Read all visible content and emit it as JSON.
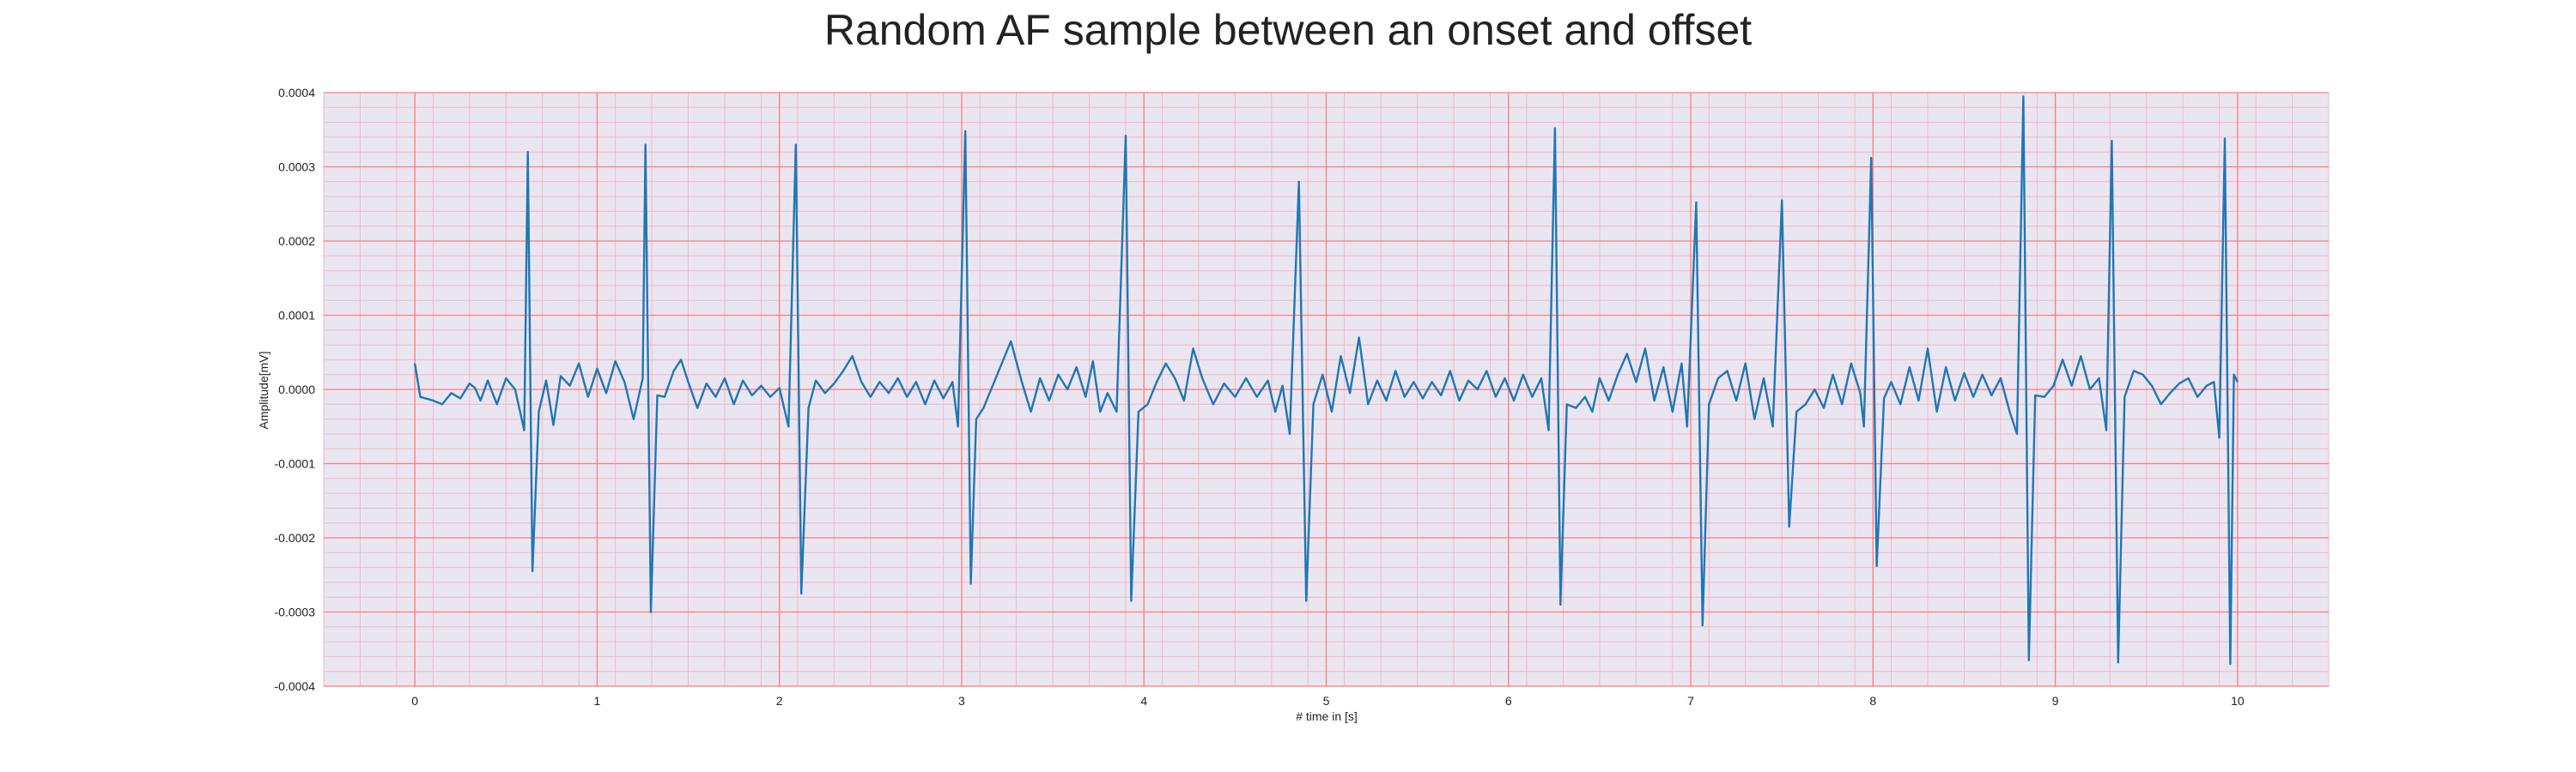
{
  "chart_data": {
    "type": "line",
    "title": "Random AF sample between an onset and offset",
    "xlabel": "# time in [s]",
    "ylabel": "Amplitude[mV]",
    "xlim": [
      -0.5,
      10.5
    ],
    "ylim": [
      -0.0004,
      0.0004
    ],
    "xticks": [
      0,
      1,
      2,
      3,
      4,
      5,
      6,
      7,
      8,
      9,
      10
    ],
    "xtick_labels": [
      "0",
      "1",
      "2",
      "3",
      "4",
      "5",
      "6",
      "7",
      "8",
      "9",
      "10"
    ],
    "yticks": [
      0.0004,
      0.0003,
      0.0002,
      0.0001,
      0.0,
      -0.0001,
      -0.0002,
      -0.0003,
      -0.0004
    ],
    "ytick_labels": [
      "0.0004",
      "0.0003",
      "0.0002",
      "0.0001",
      "0.0000",
      "-0.0001",
      "-0.0002",
      "-0.0003",
      "-0.0004"
    ],
    "grid": {
      "major": true,
      "minor": true,
      "major_color": "#ff7b7b",
      "minor_color": "#f2b8c8"
    },
    "background_color": "#eae6f1",
    "series": [
      {
        "color": "#1f77b4",
        "points": [
          [
            0.0,
            3.5e-05
          ],
          [
            0.03,
            -1e-05
          ],
          [
            0.1,
            -1.5e-05
          ],
          [
            0.15,
            -2e-05
          ],
          [
            0.2,
            -5e-06
          ],
          [
            0.25,
            -1.2e-05
          ],
          [
            0.3,
            8e-06
          ],
          [
            0.33,
            2e-06
          ],
          [
            0.36,
            -1.5e-05
          ],
          [
            0.4,
            1.2e-05
          ],
          [
            0.45,
            -2e-05
          ],
          [
            0.5,
            1.5e-05
          ],
          [
            0.55,
            0.0
          ],
          [
            0.6,
            -5.5e-05
          ],
          [
            0.62,
            0.00032
          ],
          [
            0.645,
            -0.000245
          ],
          [
            0.68,
            -3e-05
          ],
          [
            0.72,
            1.2e-05
          ],
          [
            0.76,
            -4.8e-05
          ],
          [
            0.8,
            1.8e-05
          ],
          [
            0.85,
            5e-06
          ],
          [
            0.9,
            3.5e-05
          ],
          [
            0.95,
            -1e-05
          ],
          [
            1.0,
            2.8e-05
          ],
          [
            1.05,
            -5e-06
          ],
          [
            1.1,
            3.8e-05
          ],
          [
            1.15,
            1e-05
          ],
          [
            1.2,
            -4e-05
          ],
          [
            1.25,
            1.5e-05
          ],
          [
            1.265,
            0.00033
          ],
          [
            1.295,
            -0.0003
          ],
          [
            1.33,
            -8e-06
          ],
          [
            1.37,
            -1e-05
          ],
          [
            1.42,
            2.5e-05
          ],
          [
            1.46,
            4e-05
          ],
          [
            1.5,
            1e-05
          ],
          [
            1.55,
            -2.5e-05
          ],
          [
            1.6,
            8e-06
          ],
          [
            1.65,
            -1e-05
          ],
          [
            1.7,
            1.5e-05
          ],
          [
            1.75,
            -2e-05
          ],
          [
            1.8,
            1.2e-05
          ],
          [
            1.85,
            -8e-06
          ],
          [
            1.9,
            5e-06
          ],
          [
            1.95,
            -1e-05
          ],
          [
            2.0,
            2e-06
          ],
          [
            2.05,
            -5e-05
          ],
          [
            2.09,
            0.00033
          ],
          [
            2.12,
            -0.000275
          ],
          [
            2.16,
            -2.5e-05
          ],
          [
            2.2,
            1.2e-05
          ],
          [
            2.25,
            -5e-06
          ],
          [
            2.3,
            8e-06
          ],
          [
            2.35,
            2.5e-05
          ],
          [
            2.4,
            4.5e-05
          ],
          [
            2.45,
            1e-05
          ],
          [
            2.5,
            -1e-05
          ],
          [
            2.55,
            1e-05
          ],
          [
            2.6,
            -5e-06
          ],
          [
            2.65,
            1.5e-05
          ],
          [
            2.7,
            -1e-05
          ],
          [
            2.75,
            1e-05
          ],
          [
            2.8,
            -2e-05
          ],
          [
            2.85,
            1.2e-05
          ],
          [
            2.9,
            -1.2e-05
          ],
          [
            2.95,
            1e-05
          ],
          [
            2.98,
            -5e-05
          ],
          [
            3.02,
            0.000348
          ],
          [
            3.05,
            -0.000262
          ],
          [
            3.08,
            -4e-05
          ],
          [
            3.12,
            -2.5e-05
          ],
          [
            3.17,
            5e-06
          ],
          [
            3.22,
            3.5e-05
          ],
          [
            3.27,
            6.5e-05
          ],
          [
            3.33,
            1e-05
          ],
          [
            3.38,
            -3e-05
          ],
          [
            3.43,
            1.5e-05
          ],
          [
            3.48,
            -1.5e-05
          ],
          [
            3.53,
            2e-05
          ],
          [
            3.58,
            0.0
          ],
          [
            3.63,
            3e-05
          ],
          [
            3.68,
            -1e-05
          ],
          [
            3.72,
            3.8e-05
          ],
          [
            3.76,
            -3e-05
          ],
          [
            3.8,
            -5e-06
          ],
          [
            3.85,
            -3e-05
          ],
          [
            3.9,
            0.000342
          ],
          [
            3.93,
            -0.000285
          ],
          [
            3.97,
            -3e-05
          ],
          [
            4.02,
            -2e-05
          ],
          [
            4.07,
            1e-05
          ],
          [
            4.12,
            3.5e-05
          ],
          [
            4.17,
            1.5e-05
          ],
          [
            4.22,
            -1.5e-05
          ],
          [
            4.27,
            5.5e-05
          ],
          [
            4.32,
            1.5e-05
          ],
          [
            4.38,
            -2e-05
          ],
          [
            4.44,
            8e-06
          ],
          [
            4.5,
            -1e-05
          ],
          [
            4.56,
            1.5e-05
          ],
          [
            4.62,
            -1e-05
          ],
          [
            4.68,
            1.2e-05
          ],
          [
            4.72,
            -3e-05
          ],
          [
            4.76,
            5e-06
          ],
          [
            4.8,
            -6e-05
          ],
          [
            4.85,
            0.00028
          ],
          [
            4.89,
            -0.000285
          ],
          [
            4.93,
            -2e-05
          ],
          [
            4.98,
            2e-05
          ],
          [
            5.03,
            -3e-05
          ],
          [
            5.08,
            4.5e-05
          ],
          [
            5.13,
            -5e-06
          ],
          [
            5.18,
            7e-05
          ],
          [
            5.23,
            -2e-05
          ],
          [
            5.28,
            1.2e-05
          ],
          [
            5.33,
            -1.5e-05
          ],
          [
            5.38,
            2.5e-05
          ],
          [
            5.43,
            -1e-05
          ],
          [
            5.48,
            1e-05
          ],
          [
            5.53,
            -1.2e-05
          ],
          [
            5.58,
            1e-05
          ],
          [
            5.63,
            -8e-06
          ],
          [
            5.68,
            2.5e-05
          ],
          [
            5.73,
            -1.5e-05
          ],
          [
            5.78,
            1.2e-05
          ],
          [
            5.83,
            0.0
          ],
          [
            5.88,
            2.5e-05
          ],
          [
            5.93,
            -1e-05
          ],
          [
            5.98,
            1.5e-05
          ],
          [
            6.03,
            -1.5e-05
          ],
          [
            6.08,
            2e-05
          ],
          [
            6.13,
            -1e-05
          ],
          [
            6.18,
            1.5e-05
          ],
          [
            6.22,
            -5.5e-05
          ],
          [
            6.255,
            0.000352
          ],
          [
            6.285,
            -0.00029
          ],
          [
            6.32,
            -2e-05
          ],
          [
            6.37,
            -2.5e-05
          ],
          [
            6.42,
            -1e-05
          ],
          [
            6.46,
            -3e-05
          ],
          [
            6.5,
            1.5e-05
          ],
          [
            6.55,
            -1.5e-05
          ],
          [
            6.6,
            2e-05
          ],
          [
            6.65,
            4.8e-05
          ],
          [
            6.7,
            1e-05
          ],
          [
            6.75,
            5.5e-05
          ],
          [
            6.8,
            -1.5e-05
          ],
          [
            6.85,
            3e-05
          ],
          [
            6.9,
            -3e-05
          ],
          [
            6.95,
            3.5e-05
          ],
          [
            6.98,
            -5e-05
          ],
          [
            7.03,
            0.000252
          ],
          [
            7.065,
            -0.000318
          ],
          [
            7.1,
            -2e-05
          ],
          [
            7.15,
            1.5e-05
          ],
          [
            7.2,
            2.5e-05
          ],
          [
            7.25,
            -1.5e-05
          ],
          [
            7.3,
            3.5e-05
          ],
          [
            7.35,
            -4e-05
          ],
          [
            7.4,
            1.5e-05
          ],
          [
            7.45,
            -5e-05
          ],
          [
            7.5,
            0.000255
          ],
          [
            7.54,
            -0.000185
          ],
          [
            7.58,
            -3e-05
          ],
          [
            7.63,
            -2e-05
          ],
          [
            7.68,
            0.0
          ],
          [
            7.73,
            -2.5e-05
          ],
          [
            7.78,
            2e-05
          ],
          [
            7.83,
            -2e-05
          ],
          [
            7.88,
            3.5e-05
          ],
          [
            7.93,
            -5e-06
          ],
          [
            7.95,
            -5e-05
          ],
          [
            7.99,
            0.000312
          ],
          [
            8.02,
            -0.000238
          ],
          [
            8.06,
            -1.2e-05
          ],
          [
            8.1,
            1e-05
          ],
          [
            8.15,
            -2e-05
          ],
          [
            8.2,
            3e-05
          ],
          [
            8.25,
            -1.5e-05
          ],
          [
            8.3,
            5.5e-05
          ],
          [
            8.35,
            -3e-05
          ],
          [
            8.4,
            3e-05
          ],
          [
            8.45,
            -1.5e-05
          ],
          [
            8.5,
            2.2e-05
          ],
          [
            8.55,
            -1e-05
          ],
          [
            8.6,
            2e-05
          ],
          [
            8.65,
            -8e-06
          ],
          [
            8.7,
            1.5e-05
          ],
          [
            8.75,
            -3e-05
          ],
          [
            8.79,
            -6e-05
          ],
          [
            8.825,
            0.000395
          ],
          [
            8.855,
            -0.000365
          ],
          [
            8.89,
            -8e-06
          ],
          [
            8.94,
            -1e-05
          ],
          [
            8.99,
            5e-06
          ],
          [
            9.04,
            4e-05
          ],
          [
            9.09,
            5e-06
          ],
          [
            9.14,
            4.5e-05
          ],
          [
            9.19,
            0.0
          ],
          [
            9.24,
            1.5e-05
          ],
          [
            9.28,
            -5.5e-05
          ],
          [
            9.31,
            0.000335
          ],
          [
            9.345,
            -0.000368
          ],
          [
            9.38,
            -1e-05
          ],
          [
            9.43,
            2.5e-05
          ],
          [
            9.48,
            2e-05
          ],
          [
            9.53,
            5e-06
          ],
          [
            9.58,
            -2e-05
          ],
          [
            9.63,
            -5e-06
          ],
          [
            9.68,
            8e-06
          ],
          [
            9.73,
            1.5e-05
          ],
          [
            9.78,
            -1e-05
          ],
          [
            9.83,
            5e-06
          ],
          [
            9.87,
            1e-05
          ],
          [
            9.9,
            -6.5e-05
          ],
          [
            9.93,
            0.000338
          ],
          [
            9.96,
            -0.00037
          ],
          [
            9.98,
            2e-05
          ],
          [
            10.0,
            1e-05
          ]
        ]
      }
    ]
  }
}
